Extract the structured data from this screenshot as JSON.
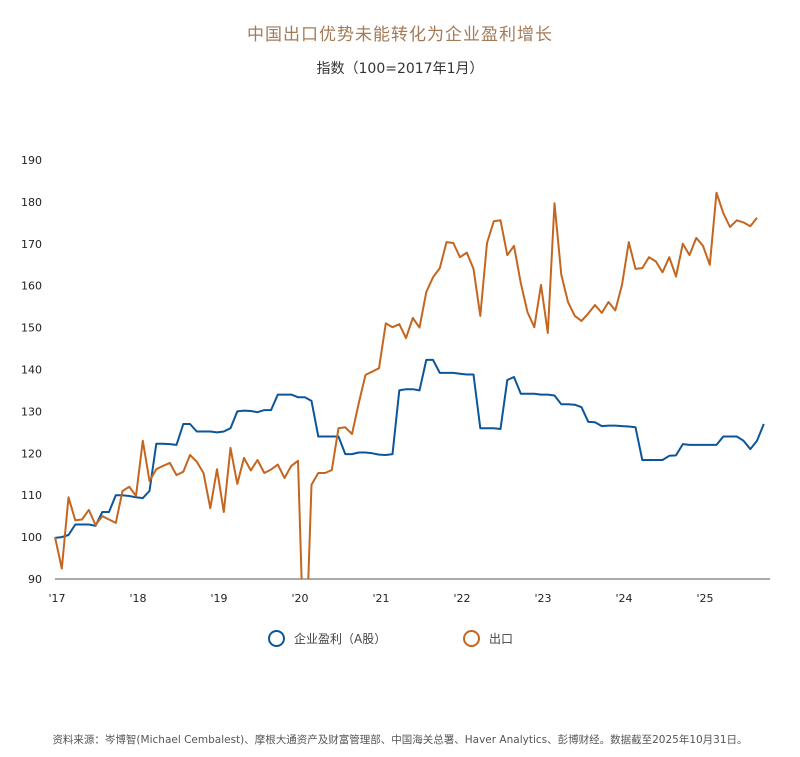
{
  "title": "中国出口优势未能转化为企业盈利增长",
  "subtitle": "指数（100=2017年1月）",
  "source": "资料来源：岑博智(Michael Cembalest)、摩根大通资产及财富管理部、中国海关总署、Haver Analytics、彭博财经。数据截至2025年10月31日。",
  "chart_data": {
    "type": "line",
    "title": "中国出口优势未能转化为企业盈利增长",
    "subtitle": "指数（100=2017年1月）",
    "x_start": "2017-01",
    "x_frequency": "monthly",
    "xlim": [
      "2017-01",
      "2025-10"
    ],
    "x_ticks": [
      "'17",
      "'18",
      "'19",
      "'20",
      "'21",
      "'22",
      "'23",
      "'24",
      "'25"
    ],
    "ylim": [
      90,
      190
    ],
    "y_ticks": [
      90,
      100,
      110,
      120,
      130,
      140,
      150,
      160,
      170,
      180,
      190
    ],
    "grid": false,
    "legend_position": "bottom",
    "series": [
      {
        "name": "企业盈利（A股）",
        "color": "#0b559b",
        "values": [
          99.8,
          100,
          100.5,
          103,
          103,
          103,
          102.7,
          106,
          106,
          110,
          110,
          109.8,
          109.5,
          109.3,
          111,
          122.3,
          122.3,
          122.2,
          122,
          127,
          127,
          125.2,
          125.2,
          125.2,
          125,
          125.2,
          126,
          130,
          130.2,
          130.1,
          129.8,
          130.3,
          130.3,
          134,
          134,
          134,
          133.4,
          133.4,
          132.5,
          124,
          124,
          124,
          124,
          119.8,
          119.8,
          120.2,
          120.2,
          120,
          119.7,
          119.6,
          119.8,
          135,
          135.3,
          135.3,
          135,
          142.3,
          142.3,
          139.2,
          139.2,
          139.2,
          139,
          138.8,
          138.8,
          126,
          126,
          126,
          125.8,
          137.5,
          138.2,
          134.2,
          134.2,
          134.2,
          134,
          134,
          133.8,
          131.7,
          131.7,
          131.6,
          131,
          127.5,
          127.4,
          126.5,
          126.6,
          126.6,
          126.5,
          126.4,
          126.2,
          118.4,
          118.4,
          118.4,
          118.4,
          119.4,
          119.5,
          122.2,
          122,
          122,
          122,
          122,
          122,
          124,
          124,
          124,
          123,
          121,
          123,
          127
        ]
      },
      {
        "name": "出口",
        "color": "#c4661f",
        "values": [
          100,
          92.5,
          109.5,
          104,
          104.2,
          106.5,
          102.9,
          105,
          104.2,
          103.4,
          111,
          112,
          109.8,
          123,
          113.4,
          116.2,
          117,
          117.7,
          114.8,
          115.6,
          119.6,
          118,
          115.3,
          106.9,
          116.2,
          106,
          121.3,
          112.7,
          118.9,
          115.9,
          118.4,
          115.3,
          116.1,
          117.3,
          114.1,
          117,
          118.2,
          65,
          112.5,
          115.3,
          115.3,
          116,
          126,
          126.2,
          124.6,
          132,
          138.7,
          139.5,
          140.3,
          151,
          150.1,
          150.8,
          147.5,
          152.3,
          150,
          158.5,
          162,
          164.2,
          170.4,
          170.2,
          166.8,
          167.9,
          164,
          152.8,
          170.2,
          175.4,
          175.6,
          167.3,
          169.5,
          160.6,
          153.7,
          150.1,
          160.2,
          148.7,
          179.7,
          162.6,
          156.1,
          152.8,
          151.6,
          153.4,
          155.4,
          153.5,
          156.1,
          154.1,
          160.2,
          170.4,
          164,
          164.2,
          166.8,
          165.8,
          163.2,
          166.8,
          162.2,
          170,
          167.3,
          171.4,
          169.5,
          165,
          182.2,
          177.3,
          174,
          175.6,
          175.1,
          174.2,
          176.2
        ]
      }
    ]
  }
}
